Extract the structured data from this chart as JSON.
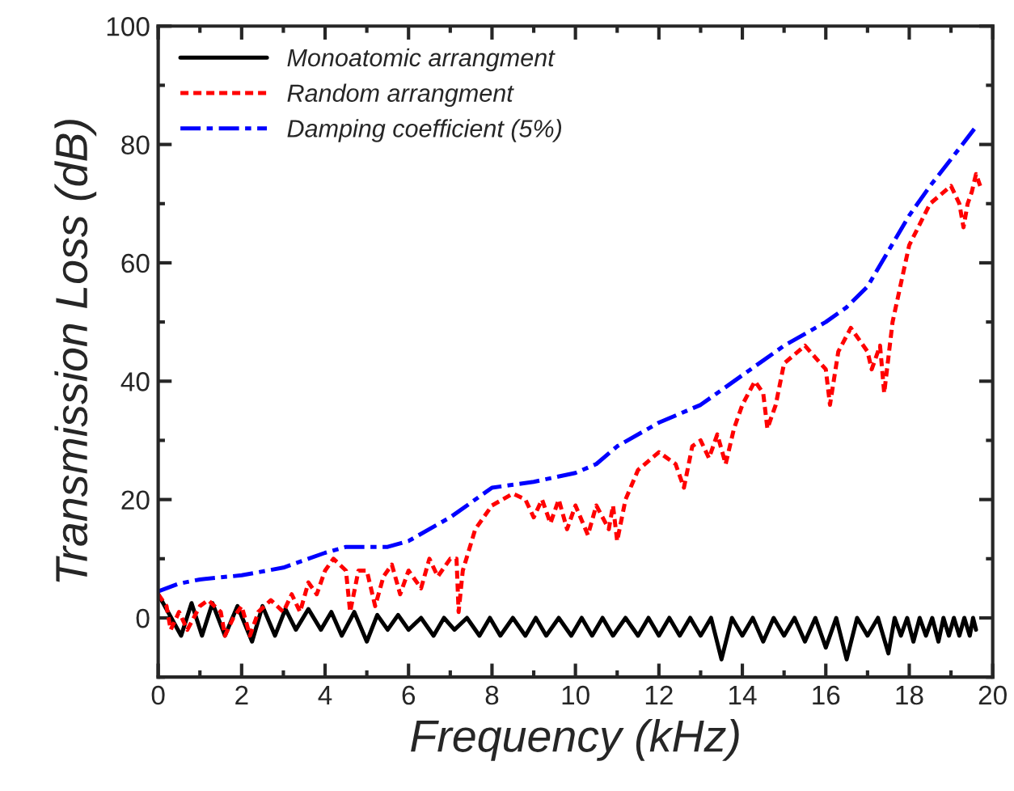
{
  "chart_data": {
    "type": "line",
    "xlabel": "Frequency (kHz)",
    "ylabel": "Transmission Loss (dB)",
    "xlim": [
      0,
      20
    ],
    "xticks": [
      0,
      2,
      4,
      6,
      8,
      10,
      12,
      14,
      16,
      18,
      20
    ],
    "ylim": [
      -10,
      100
    ],
    "yticks": [
      0,
      20,
      40,
      60,
      80,
      100
    ],
    "legend": "top left",
    "grid": false,
    "marker": "none",
    "series": [
      {
        "name": "Monoatomic arrangment",
        "color": "#000000",
        "line_style": "solid",
        "x": [
          0,
          0.55,
          0.8,
          1.05,
          1.3,
          1.6,
          1.9,
          2.25,
          2.5,
          2.8,
          3.05,
          3.3,
          3.6,
          3.9,
          4.15,
          4.4,
          4.7,
          5.0,
          5.25,
          5.5,
          5.75,
          6.0,
          6.3,
          6.6,
          6.85,
          7.1,
          7.4,
          7.7,
          7.95,
          8.2,
          8.5,
          8.8,
          9.05,
          9.3,
          9.6,
          9.9,
          10.15,
          10.4,
          10.65,
          10.9,
          11.2,
          11.5,
          11.75,
          12.0,
          12.25,
          12.5,
          12.75,
          13.0,
          13.25,
          13.5,
          13.75,
          14.0,
          14.25,
          14.5,
          14.75,
          15.0,
          15.25,
          15.5,
          15.75,
          16.0,
          16.25,
          16.5,
          16.75,
          17.0,
          17.25,
          17.5,
          17.65,
          17.8,
          17.95,
          18.1,
          18.25,
          18.4,
          18.55,
          18.7,
          18.82,
          18.95,
          19.07,
          19.2,
          19.32,
          19.45,
          19.53,
          19.6
        ],
        "values": [
          4,
          -3,
          2.5,
          -3,
          2.5,
          -3,
          2,
          -4,
          2,
          -3,
          1.5,
          -2,
          1.5,
          -2,
          1,
          -3,
          1,
          -4,
          0.5,
          -2,
          0.5,
          -2,
          0,
          -3,
          0,
          -2,
          0,
          -3,
          0,
          -3,
          0,
          -3,
          0,
          -3,
          0,
          -3,
          0,
          -3,
          0,
          -3,
          0,
          -3,
          0,
          -3,
          0,
          -3,
          0,
          -3,
          0,
          -7,
          0,
          -3,
          0,
          -4,
          0,
          -3,
          0,
          -4,
          0,
          -5,
          0,
          -7,
          0,
          -3,
          0,
          -6,
          0,
          -3,
          0,
          -4,
          0,
          -3,
          0,
          -4,
          0,
          -3,
          0,
          -3,
          0,
          -3,
          0,
          -2
        ]
      },
      {
        "name": "Random arrangment",
        "color": "#ff0000",
        "line_style": "dotted",
        "x": [
          0,
          0.2,
          0.3,
          0.5,
          0.7,
          1,
          1.2,
          1.5,
          1.6,
          1.8,
          2,
          2.2,
          2.4,
          2.7,
          3,
          3.2,
          3.4,
          3.6,
          3.8,
          4,
          4.2,
          4.5,
          4.6,
          4.8,
          5,
          5.2,
          5.4,
          5.6,
          5.8,
          6,
          6.3,
          6.5,
          6.7,
          7,
          7.15,
          7.2,
          7.3,
          7.6,
          8,
          8.5,
          8.8,
          9,
          9.2,
          9.4,
          9.6,
          9.8,
          10,
          10.3,
          10.5,
          10.8,
          10.9,
          11,
          11.2,
          11.5,
          12,
          12.4,
          12.6,
          12.8,
          13,
          13.2,
          13.4,
          13.6,
          13.8,
          14,
          14.3,
          14.5,
          14.6,
          14.8,
          15,
          15.5,
          16,
          16.1,
          16.3,
          16.6,
          17,
          17.1,
          17.3,
          17.4,
          17.6,
          18,
          18.5,
          19,
          19.2,
          19.3,
          19.4,
          19.5,
          19.6,
          19.7
        ],
        "values": [
          4,
          2,
          -2,
          1,
          -2,
          2,
          3,
          1,
          -3,
          0,
          2,
          -3,
          1,
          3,
          1,
          4,
          1,
          6,
          4,
          8,
          10,
          8,
          1,
          8,
          8,
          2,
          7,
          9,
          4,
          8,
          5,
          10,
          7,
          10,
          10,
          1,
          8,
          15,
          19,
          21,
          20,
          17,
          20,
          16,
          20,
          15,
          19,
          14,
          19,
          15,
          19,
          13,
          20,
          25,
          28,
          26,
          22,
          29,
          30,
          27,
          31,
          26,
          32,
          36,
          40,
          38,
          32,
          36,
          43,
          46,
          42,
          36,
          45,
          49,
          45,
          42,
          46,
          38,
          50,
          63,
          70,
          73,
          70,
          66,
          70,
          72,
          75,
          73
        ]
      },
      {
        "name": "Damping coefficient (5%)",
        "color": "#0000ff",
        "line_style": "dashdot",
        "x": [
          0,
          0.5,
          1,
          2,
          3,
          4,
          4.5,
          5.5,
          6,
          7,
          8,
          9,
          10,
          10.5,
          11,
          12,
          13,
          14,
          15,
          16,
          16.5,
          17,
          17.5,
          18,
          18.5,
          19,
          19.6
        ],
        "values": [
          4.5,
          5.8,
          6.5,
          7.2,
          8.5,
          11,
          12,
          12,
          13,
          17,
          22,
          23,
          24.5,
          26,
          29,
          33,
          36,
          41,
          46,
          50,
          52.5,
          56,
          62,
          68,
          73,
          77.5,
          83
        ]
      }
    ]
  }
}
